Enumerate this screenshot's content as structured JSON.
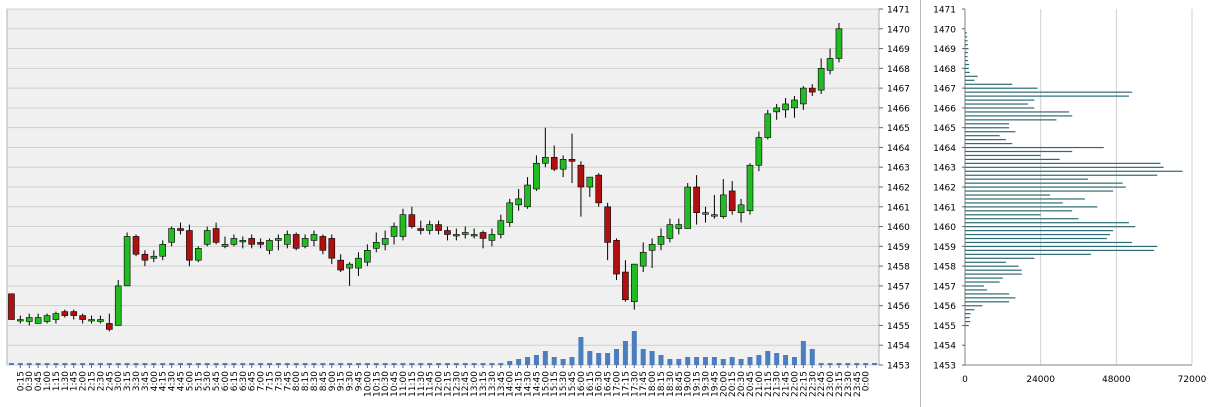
{
  "colors": {
    "plot_bg": "#f0f0f0",
    "grid": "#d0d0d0",
    "up": "#22bb22",
    "down": "#b01010",
    "volume": "#4a7ebf",
    "profile": "#2e6b73"
  },
  "chart_data": [
    {
      "type": "candlestick",
      "y_axis": {
        "side": "right",
        "ylim": [
          1453,
          1471
        ],
        "ticks": [
          1453,
          1454,
          1455,
          1456,
          1457,
          1458,
          1459,
          1460,
          1461,
          1462,
          1463,
          1464,
          1465,
          1466,
          1467,
          1468,
          1469,
          1470,
          1471
        ],
        "grid": true
      },
      "x_tick_labels": [
        "0:15",
        "0:30",
        "0:45",
        "1:00",
        "1:15",
        "1:30",
        "1:45",
        "2:00",
        "2:15",
        "2:30",
        "2:45",
        "3:00",
        "3:15",
        "3:30",
        "3:45",
        "4:00",
        "4:15",
        "4:30",
        "4:45",
        "5:00",
        "5:15",
        "5:30",
        "5:45",
        "6:00",
        "6:15",
        "6:30",
        "6:45",
        "7:00",
        "7:15",
        "7:30",
        "7:45",
        "8:00",
        "8:15",
        "8:30",
        "8:45",
        "9:00",
        "9:15",
        "9:30",
        "9:45",
        "10:00",
        "10:15",
        "10:30",
        "10:45",
        "11:00",
        "11:15",
        "11:30",
        "11:45",
        "12:00",
        "12:15",
        "12:30",
        "12:45",
        "13:00",
        "13:15",
        "13:30",
        "13:45",
        "14:00",
        "14:15",
        "14:30",
        "14:45",
        "15:00",
        "15:15",
        "15:30",
        "15:45",
        "16:00",
        "16:15",
        "16:30",
        "16:45",
        "17:00",
        "17:15",
        "17:30",
        "17:45",
        "18:00",
        "18:15",
        "18:30",
        "18:45",
        "19:00",
        "19:15",
        "19:30",
        "19:45",
        "20:00",
        "20:15",
        "20:30",
        "20:45",
        "21:00",
        "21:15",
        "21:30",
        "21:45",
        "22:00",
        "22:15",
        "22:30",
        "22:45",
        "23:00",
        "23:15",
        "23:30",
        "23:45",
        "0:00"
      ],
      "candles": [
        {
          "t": "0:00",
          "o": 1456.6,
          "h": 1456.6,
          "l": 1455.3,
          "c": 1455.3
        },
        {
          "t": "0:15",
          "o": 1455.3,
          "h": 1455.5,
          "l": 1455.1,
          "c": 1455.3
        },
        {
          "t": "0:30",
          "o": 1455.2,
          "h": 1455.6,
          "l": 1455.0,
          "c": 1455.4
        },
        {
          "t": "0:45",
          "o": 1455.1,
          "h": 1455.6,
          "l": 1455.1,
          "c": 1455.4
        },
        {
          "t": "1:00",
          "o": 1455.2,
          "h": 1455.6,
          "l": 1455.1,
          "c": 1455.5
        },
        {
          "t": "1:15",
          "o": 1455.3,
          "h": 1455.7,
          "l": 1455.1,
          "c": 1455.6
        },
        {
          "t": "1:30",
          "o": 1455.7,
          "h": 1455.8,
          "l": 1455.4,
          "c": 1455.5
        },
        {
          "t": "1:45",
          "o": 1455.7,
          "h": 1455.8,
          "l": 1455.3,
          "c": 1455.5
        },
        {
          "t": "2:00",
          "o": 1455.5,
          "h": 1455.6,
          "l": 1455.1,
          "c": 1455.3
        },
        {
          "t": "2:15",
          "o": 1455.3,
          "h": 1455.5,
          "l": 1455.1,
          "c": 1455.3
        },
        {
          "t": "2:30",
          "o": 1455.2,
          "h": 1455.5,
          "l": 1455.1,
          "c": 1455.3
        },
        {
          "t": "2:45",
          "o": 1455.1,
          "h": 1455.6,
          "l": 1454.7,
          "c": 1454.8
        },
        {
          "t": "3:00",
          "o": 1455.0,
          "h": 1457.3,
          "l": 1455.0,
          "c": 1457.0
        },
        {
          "t": "3:15",
          "o": 1457.0,
          "h": 1459.7,
          "l": 1457.0,
          "c": 1459.5
        },
        {
          "t": "3:30",
          "o": 1459.5,
          "h": 1459.6,
          "l": 1458.5,
          "c": 1458.6
        },
        {
          "t": "3:45",
          "o": 1458.6,
          "h": 1458.8,
          "l": 1458.0,
          "c": 1458.3
        },
        {
          "t": "4:00",
          "o": 1458.4,
          "h": 1458.8,
          "l": 1458.2,
          "c": 1458.5
        },
        {
          "t": "4:15",
          "o": 1458.5,
          "h": 1459.3,
          "l": 1458.3,
          "c": 1459.1
        },
        {
          "t": "4:30",
          "o": 1459.2,
          "h": 1460.0,
          "l": 1459.0,
          "c": 1459.9
        },
        {
          "t": "4:45",
          "o": 1459.9,
          "h": 1460.2,
          "l": 1459.6,
          "c": 1459.8
        },
        {
          "t": "5:00",
          "o": 1459.8,
          "h": 1460.1,
          "l": 1458.0,
          "c": 1458.3
        },
        {
          "t": "5:15",
          "o": 1458.3,
          "h": 1459.0,
          "l": 1458.2,
          "c": 1458.9
        },
        {
          "t": "5:30",
          "o": 1459.1,
          "h": 1460.0,
          "l": 1459.0,
          "c": 1459.8
        },
        {
          "t": "5:45",
          "o": 1459.9,
          "h": 1460.2,
          "l": 1459.1,
          "c": 1459.2
        },
        {
          "t": "6:00",
          "o": 1459.0,
          "h": 1459.5,
          "l": 1458.9,
          "c": 1459.1
        },
        {
          "t": "6:15",
          "o": 1459.1,
          "h": 1459.6,
          "l": 1459.0,
          "c": 1459.4
        },
        {
          "t": "6:30",
          "o": 1459.3,
          "h": 1459.5,
          "l": 1458.9,
          "c": 1459.3
        },
        {
          "t": "6:45",
          "o": 1459.4,
          "h": 1459.6,
          "l": 1458.9,
          "c": 1459.1
        },
        {
          "t": "7:00",
          "o": 1459.2,
          "h": 1459.4,
          "l": 1458.9,
          "c": 1459.1
        },
        {
          "t": "7:15",
          "o": 1458.8,
          "h": 1459.4,
          "l": 1458.6,
          "c": 1459.3
        },
        {
          "t": "7:30",
          "o": 1459.3,
          "h": 1459.6,
          "l": 1458.8,
          "c": 1459.4
        },
        {
          "t": "7:45",
          "o": 1459.1,
          "h": 1459.8,
          "l": 1458.9,
          "c": 1459.6
        },
        {
          "t": "8:00",
          "o": 1459.6,
          "h": 1459.7,
          "l": 1458.8,
          "c": 1458.9
        },
        {
          "t": "8:15",
          "o": 1459.0,
          "h": 1459.6,
          "l": 1458.9,
          "c": 1459.4
        },
        {
          "t": "8:30",
          "o": 1459.3,
          "h": 1459.8,
          "l": 1459.0,
          "c": 1459.6
        },
        {
          "t": "8:45",
          "o": 1459.5,
          "h": 1459.6,
          "l": 1458.6,
          "c": 1458.8
        },
        {
          "t": "9:00",
          "o": 1459.4,
          "h": 1459.6,
          "l": 1458.1,
          "c": 1458.4
        },
        {
          "t": "9:15",
          "o": 1458.3,
          "h": 1458.6,
          "l": 1457.7,
          "c": 1457.8
        },
        {
          "t": "9:30",
          "o": 1457.9,
          "h": 1458.2,
          "l": 1457.0,
          "c": 1458.1
        },
        {
          "t": "9:45",
          "o": 1457.9,
          "h": 1458.7,
          "l": 1457.5,
          "c": 1458.4
        },
        {
          "t": "10:00",
          "o": 1458.2,
          "h": 1459.1,
          "l": 1458.0,
          "c": 1458.8
        },
        {
          "t": "10:15",
          "o": 1458.9,
          "h": 1459.7,
          "l": 1458.7,
          "c": 1459.2
        },
        {
          "t": "10:30",
          "o": 1459.1,
          "h": 1459.8,
          "l": 1458.8,
          "c": 1459.4
        },
        {
          "t": "10:45",
          "o": 1459.5,
          "h": 1460.2,
          "l": 1459.1,
          "c": 1460.0
        },
        {
          "t": "11:00",
          "o": 1459.5,
          "h": 1460.9,
          "l": 1459.3,
          "c": 1460.6
        },
        {
          "t": "11:15",
          "o": 1460.6,
          "h": 1461.0,
          "l": 1459.9,
          "c": 1460.0
        },
        {
          "t": "11:30",
          "o": 1459.9,
          "h": 1460.3,
          "l": 1459.6,
          "c": 1459.8
        },
        {
          "t": "11:45",
          "o": 1459.8,
          "h": 1460.3,
          "l": 1459.6,
          "c": 1460.1
        },
        {
          "t": "12:00",
          "o": 1460.1,
          "h": 1460.3,
          "l": 1459.6,
          "c": 1459.8
        },
        {
          "t": "12:15",
          "o": 1459.8,
          "h": 1460.0,
          "l": 1459.3,
          "c": 1459.6
        },
        {
          "t": "12:30",
          "o": 1459.6,
          "h": 1459.9,
          "l": 1459.3,
          "c": 1459.6
        },
        {
          "t": "12:45",
          "o": 1459.6,
          "h": 1460.0,
          "l": 1459.4,
          "c": 1459.7
        },
        {
          "t": "13:00",
          "o": 1459.6,
          "h": 1459.9,
          "l": 1459.4,
          "c": 1459.6
        },
        {
          "t": "13:15",
          "o": 1459.7,
          "h": 1459.8,
          "l": 1458.9,
          "c": 1459.4
        },
        {
          "t": "13:30",
          "o": 1459.3,
          "h": 1459.9,
          "l": 1459.0,
          "c": 1459.6
        },
        {
          "t": "13:45",
          "o": 1459.6,
          "h": 1460.6,
          "l": 1459.4,
          "c": 1460.3
        },
        {
          "t": "14:00",
          "o": 1460.2,
          "h": 1461.4,
          "l": 1460.0,
          "c": 1461.2
        },
        {
          "t": "14:15",
          "o": 1461.1,
          "h": 1461.9,
          "l": 1460.8,
          "c": 1461.4
        },
        {
          "t": "14:30",
          "o": 1461.0,
          "h": 1462.5,
          "l": 1460.9,
          "c": 1462.1
        },
        {
          "t": "14:45",
          "o": 1461.9,
          "h": 1463.6,
          "l": 1461.8,
          "c": 1463.2
        },
        {
          "t": "15:00",
          "o": 1463.2,
          "h": 1465.0,
          "l": 1463.0,
          "c": 1463.5
        },
        {
          "t": "15:15",
          "o": 1463.5,
          "h": 1464.1,
          "l": 1462.8,
          "c": 1462.9
        },
        {
          "t": "15:30",
          "o": 1462.9,
          "h": 1463.6,
          "l": 1462.5,
          "c": 1463.4
        },
        {
          "t": "15:45",
          "o": 1463.4,
          "h": 1464.7,
          "l": 1462.2,
          "c": 1463.3
        },
        {
          "t": "16:00",
          "o": 1463.1,
          "h": 1463.3,
          "l": 1460.5,
          "c": 1462.0
        },
        {
          "t": "16:15",
          "o": 1462.0,
          "h": 1462.4,
          "l": 1461.5,
          "c": 1462.5
        },
        {
          "t": "16:30",
          "o": 1462.6,
          "h": 1462.7,
          "l": 1461.0,
          "c": 1461.2
        },
        {
          "t": "16:45",
          "o": 1461.0,
          "h": 1461.2,
          "l": 1458.3,
          "c": 1459.2
        },
        {
          "t": "17:00",
          "o": 1459.3,
          "h": 1459.4,
          "l": 1457.3,
          "c": 1457.6
        },
        {
          "t": "17:15",
          "o": 1457.7,
          "h": 1458.3,
          "l": 1456.2,
          "c": 1456.3
        },
        {
          "t": "17:30",
          "o": 1456.2,
          "h": 1458.0,
          "l": 1455.8,
          "c": 1458.1
        },
        {
          "t": "17:45",
          "o": 1458.0,
          "h": 1459.2,
          "l": 1457.7,
          "c": 1458.7
        },
        {
          "t": "18:00",
          "o": 1458.8,
          "h": 1459.4,
          "l": 1457.9,
          "c": 1459.1
        },
        {
          "t": "18:15",
          "o": 1459.1,
          "h": 1459.9,
          "l": 1458.8,
          "c": 1459.5
        },
        {
          "t": "18:30",
          "o": 1459.4,
          "h": 1460.4,
          "l": 1459.2,
          "c": 1460.1
        },
        {
          "t": "18:45",
          "o": 1459.9,
          "h": 1460.4,
          "l": 1459.6,
          "c": 1460.1
        },
        {
          "t": "19:00",
          "o": 1459.9,
          "h": 1462.2,
          "l": 1459.9,
          "c": 1462.0
        },
        {
          "t": "19:15",
          "o": 1462.0,
          "h": 1462.6,
          "l": 1460.1,
          "c": 1460.7
        },
        {
          "t": "19:30",
          "o": 1460.7,
          "h": 1461.0,
          "l": 1460.2,
          "c": 1460.7
        },
        {
          "t": "19:45",
          "o": 1460.6,
          "h": 1461.6,
          "l": 1460.4,
          "c": 1460.6
        },
        {
          "t": "20:00",
          "o": 1460.5,
          "h": 1462.4,
          "l": 1460.4,
          "c": 1461.6
        },
        {
          "t": "20:15",
          "o": 1461.8,
          "h": 1462.3,
          "l": 1460.6,
          "c": 1460.8
        },
        {
          "t": "20:30",
          "o": 1460.7,
          "h": 1461.4,
          "l": 1460.2,
          "c": 1461.1
        },
        {
          "t": "20:45",
          "o": 1460.8,
          "h": 1463.2,
          "l": 1460.6,
          "c": 1463.1
        },
        {
          "t": "21:00",
          "o": 1463.1,
          "h": 1464.8,
          "l": 1462.8,
          "c": 1464.5
        },
        {
          "t": "21:15",
          "o": 1464.5,
          "h": 1465.9,
          "l": 1464.4,
          "c": 1465.7
        },
        {
          "t": "21:30",
          "o": 1465.8,
          "h": 1466.2,
          "l": 1465.4,
          "c": 1466.0
        },
        {
          "t": "21:45",
          "o": 1465.9,
          "h": 1466.5,
          "l": 1465.5,
          "c": 1466.2
        },
        {
          "t": "22:00",
          "o": 1466.0,
          "h": 1466.6,
          "l": 1465.5,
          "c": 1466.4
        },
        {
          "t": "22:15",
          "o": 1466.2,
          "h": 1467.1,
          "l": 1465.9,
          "c": 1467.0
        },
        {
          "t": "22:30",
          "o": 1467.0,
          "h": 1467.2,
          "l": 1466.6,
          "c": 1466.8
        },
        {
          "t": "22:45",
          "o": 1466.9,
          "h": 1468.5,
          "l": 1466.7,
          "c": 1468.0
        },
        {
          "t": "23:00",
          "o": 1467.9,
          "h": 1469.0,
          "l": 1467.7,
          "c": 1468.5
        },
        {
          "t": "23:15",
          "o": 1468.5,
          "h": 1470.3,
          "l": 1468.3,
          "c": 1470.0
        }
      ],
      "volume": [
        1,
        1,
        1,
        1,
        1,
        1,
        1,
        1,
        1,
        1,
        1,
        1,
        1,
        1,
        1,
        1,
        1,
        1,
        1,
        1,
        1,
        1,
        1,
        1,
        1,
        1,
        1,
        1,
        1,
        1,
        1,
        1,
        1,
        1,
        1,
        1,
        1,
        1,
        1,
        1,
        1,
        1,
        1,
        1,
        1,
        1,
        1,
        1,
        1,
        1,
        1,
        1,
        1,
        1,
        1,
        1,
        2,
        3,
        4,
        5,
        7,
        4,
        3,
        4,
        14,
        7,
        6,
        6,
        8,
        12,
        17,
        8,
        7,
        5,
        3,
        3,
        4,
        4,
        4,
        4,
        3,
        4,
        3,
        4,
        5,
        7,
        6,
        5,
        4,
        12,
        8,
        1,
        1,
        1,
        1,
        1,
        1,
        1
      ]
    },
    {
      "type": "horizontal_bar",
      "x_axis": {
        "ticks": [
          0,
          24000,
          48000,
          72000
        ],
        "xlim": [
          0,
          72000
        ]
      },
      "y_axis": {
        "side": "left",
        "ylim": [
          1453,
          1471
        ],
        "ticks": [
          1453,
          1454,
          1455,
          1456,
          1457,
          1458,
          1459,
          1460,
          1461,
          1462,
          1463,
          1464,
          1465,
          1466,
          1467,
          1468,
          1469,
          1470,
          1471
        ]
      },
      "bins_step": 0.2,
      "bins_start": 1455.0,
      "values": [
        1200,
        1600,
        1500,
        1800,
        3000,
        5500,
        14000,
        16000,
        14000,
        7000,
        6000,
        11000,
        12000,
        18000,
        18000,
        17000,
        13000,
        22000,
        40000,
        60000,
        61000,
        53000,
        45000,
        46000,
        47000,
        54000,
        52000,
        36000,
        24000,
        34000,
        42000,
        31000,
        38000,
        27000,
        47000,
        51000,
        50000,
        39000,
        61000,
        69000,
        63000,
        62000,
        30000,
        24000,
        34000,
        44000,
        15000,
        13000,
        11000,
        16000,
        14000,
        14000,
        29000,
        34000,
        33000,
        22000,
        20000,
        22000,
        52000,
        53000,
        23000,
        15000,
        3000,
        4000,
        1500,
        1200,
        1300,
        1000,
        800,
        900,
        1100,
        900,
        800,
        700,
        600
      ]
    }
  ]
}
